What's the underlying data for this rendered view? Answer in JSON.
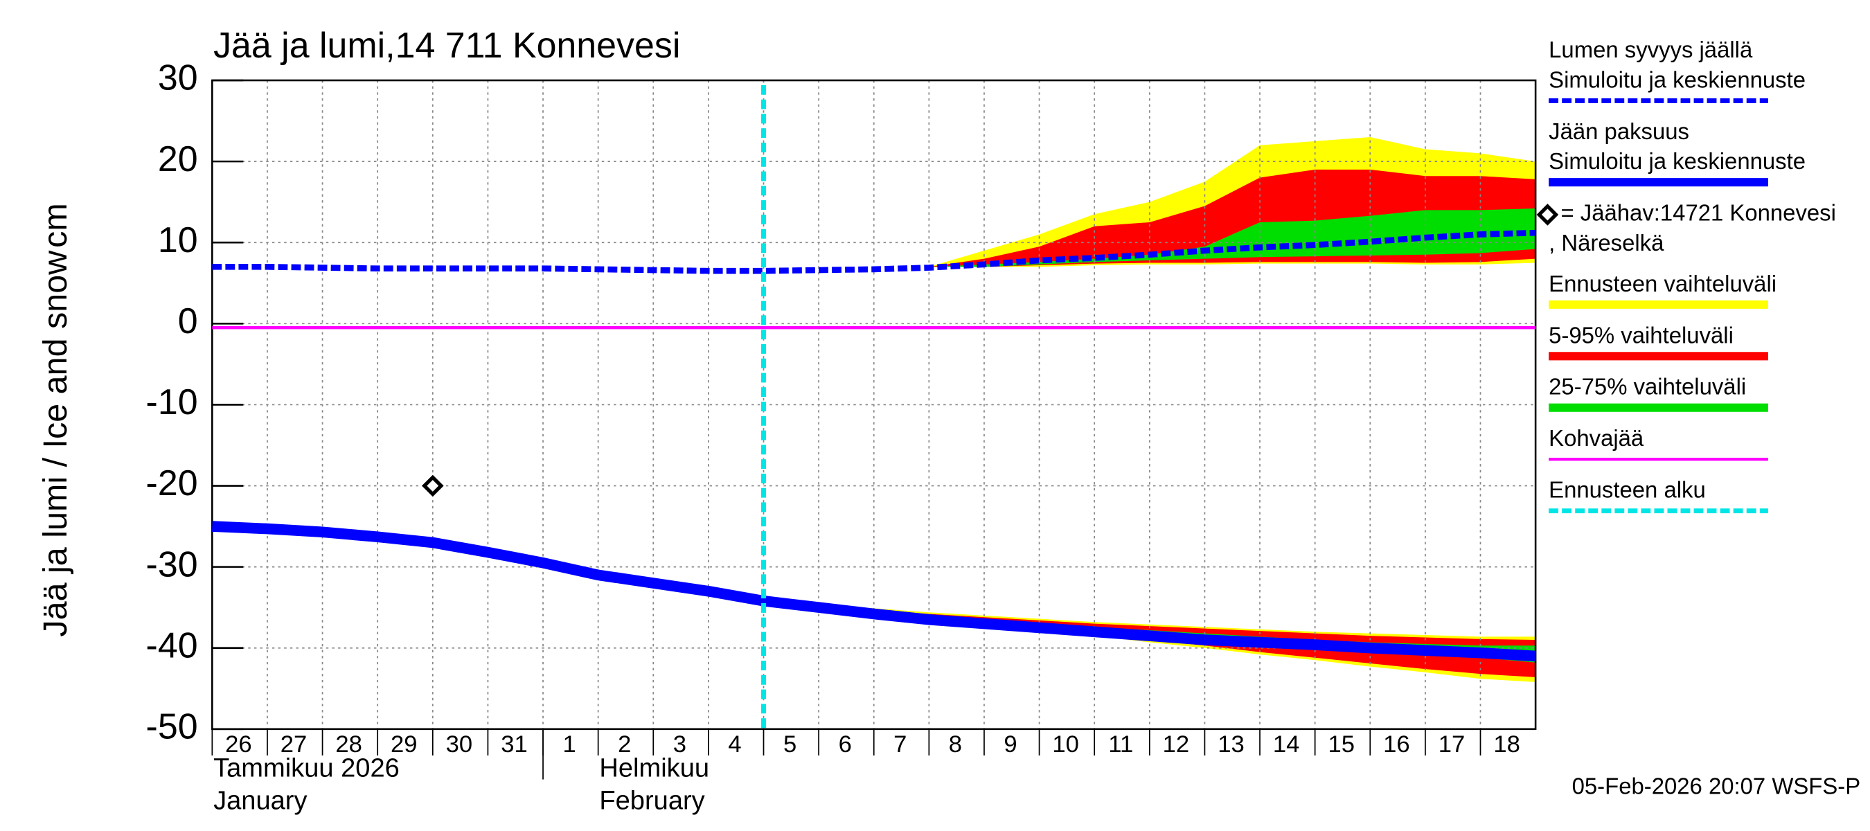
{
  "chart_data": {
    "type": "line",
    "title": "Jää ja lumi,14 711 Konnevesi",
    "y_label": "Jää ja lumi / Ice and snow",
    "y_unit": "cm",
    "month_labels": [
      "Tammikuu  2026",
      "January",
      "Helmikuu",
      "February"
    ],
    "footer": "05-Feb-2026 20:07 WSFS-P",
    "ylim": [
      -50,
      30
    ],
    "yticks": [
      30,
      20,
      10,
      0,
      -10,
      -20,
      -30,
      -40,
      -50
    ],
    "xlim": [
      "2026-01-26",
      "2026-02-19"
    ],
    "xticks": [
      {
        "value": "2026-01-26",
        "label": "26"
      },
      {
        "value": "2026-01-27",
        "label": "27"
      },
      {
        "value": "2026-01-28",
        "label": "28"
      },
      {
        "value": "2026-01-29",
        "label": "29"
      },
      {
        "value": "2026-01-30",
        "label": "30"
      },
      {
        "value": "2026-01-31",
        "label": "31"
      },
      {
        "value": "2026-02-01",
        "label": "1"
      },
      {
        "value": "2026-02-02",
        "label": "2"
      },
      {
        "value": "2026-02-03",
        "label": "3"
      },
      {
        "value": "2026-02-04",
        "label": "4"
      },
      {
        "value": "2026-02-05",
        "label": "5"
      },
      {
        "value": "2026-02-06",
        "label": "6"
      },
      {
        "value": "2026-02-07",
        "label": "7"
      },
      {
        "value": "2026-02-08",
        "label": "8"
      },
      {
        "value": "2026-02-09",
        "label": "9"
      },
      {
        "value": "2026-02-10",
        "label": "10"
      },
      {
        "value": "2026-02-11",
        "label": "11"
      },
      {
        "value": "2026-02-12",
        "label": "12"
      },
      {
        "value": "2026-02-13",
        "label": "13"
      },
      {
        "value": "2026-02-14",
        "label": "14"
      },
      {
        "value": "2026-02-15",
        "label": "15"
      },
      {
        "value": "2026-02-16",
        "label": "16"
      },
      {
        "value": "2026-02-17",
        "label": "17"
      },
      {
        "value": "2026-02-18",
        "label": "18"
      }
    ],
    "grid": true,
    "forecast_start": "2026-02-05",
    "bands": [
      {
        "color": "#ffff00",
        "x": [
          "2026-02-08",
          "2026-02-09",
          "2026-02-10",
          "2026-02-11",
          "2026-02-12",
          "2026-02-13",
          "2026-02-14",
          "2026-02-15",
          "2026-02-16",
          "2026-02-17",
          "2026-02-18",
          "2026-02-19"
        ],
        "low": [
          7,
          7,
          7,
          7.2,
          7.3,
          7.3,
          7.4,
          7.4,
          7.4,
          7.3,
          7.3,
          7.5
        ],
        "high": [
          7,
          9,
          11,
          13.5,
          15,
          17.5,
          22,
          22.5,
          23,
          21.5,
          21,
          20
        ]
      },
      {
        "color": "#ff0000",
        "x": [
          "2026-02-08",
          "2026-02-09",
          "2026-02-10",
          "2026-02-11",
          "2026-02-12",
          "2026-02-13",
          "2026-02-14",
          "2026-02-15",
          "2026-02-16",
          "2026-02-17",
          "2026-02-18",
          "2026-02-19"
        ],
        "low": [
          7,
          7,
          7.2,
          7.4,
          7.5,
          7.5,
          7.6,
          7.6,
          7.6,
          7.5,
          7.6,
          8
        ],
        "high": [
          7,
          8,
          9.5,
          12,
          12.5,
          14.5,
          18,
          19,
          19,
          18.2,
          18.2,
          17.8
        ]
      },
      {
        "color": "#00dd00",
        "x": [
          "2026-02-08",
          "2026-02-09",
          "2026-02-10",
          "2026-02-11",
          "2026-02-12",
          "2026-02-13",
          "2026-02-14",
          "2026-02-15",
          "2026-02-16",
          "2026-02-17",
          "2026-02-18",
          "2026-02-19"
        ],
        "low": [
          7,
          7,
          7.3,
          7.6,
          7.8,
          8,
          8.2,
          8.3,
          8.4,
          8.5,
          8.7,
          9.2
        ],
        "high": [
          7,
          7.3,
          7.6,
          8,
          8.5,
          9.5,
          12.5,
          12.7,
          13.3,
          14,
          14,
          14.2
        ]
      },
      {
        "color": "#ffff00",
        "x": [
          "2026-02-05",
          "2026-02-06",
          "2026-02-07",
          "2026-02-08",
          "2026-02-09",
          "2026-02-10",
          "2026-02-11",
          "2026-02-12",
          "2026-02-13",
          "2026-02-14",
          "2026-02-15",
          "2026-02-16",
          "2026-02-17",
          "2026-02-18",
          "2026-02-19"
        ],
        "low": [
          -34.2,
          -35.2,
          -36,
          -36.7,
          -37.2,
          -37.8,
          -38.5,
          -39.3,
          -40,
          -40.8,
          -41.5,
          -42.3,
          -43,
          -43.8,
          -44.2
        ],
        "high": [
          -34.2,
          -34.6,
          -35.1,
          -35.6,
          -36,
          -36.4,
          -36.8,
          -37.1,
          -37.4,
          -37.7,
          -38,
          -38.2,
          -38.4,
          -38.6,
          -38.6
        ]
      },
      {
        "color": "#ff0000",
        "x": [
          "2026-02-05",
          "2026-02-06",
          "2026-02-07",
          "2026-02-08",
          "2026-02-09",
          "2026-02-10",
          "2026-02-11",
          "2026-02-12",
          "2026-02-13",
          "2026-02-14",
          "2026-02-15",
          "2026-02-16",
          "2026-02-17",
          "2026-02-18",
          "2026-02-19"
        ],
        "low": [
          -34.2,
          -35.1,
          -35.9,
          -36.5,
          -37,
          -37.6,
          -38.3,
          -39,
          -39.7,
          -40.5,
          -41.2,
          -41.9,
          -42.6,
          -43.2,
          -43.6
        ],
        "high": [
          -34.2,
          -34.8,
          -35.3,
          -35.8,
          -36.2,
          -36.6,
          -37,
          -37.3,
          -37.6,
          -37.9,
          -38.2,
          -38.5,
          -38.7,
          -38.9,
          -39
        ]
      },
      {
        "color": "#00dd00",
        "x": [
          "2026-02-05",
          "2026-02-06",
          "2026-02-07",
          "2026-02-08",
          "2026-02-09",
          "2026-02-10",
          "2026-02-11",
          "2026-02-12",
          "2026-02-13",
          "2026-02-14",
          "2026-02-15",
          "2026-02-16",
          "2026-02-17",
          "2026-02-18",
          "2026-02-19"
        ],
        "low": [
          -34.2,
          -35.1,
          -35.8,
          -36.4,
          -36.9,
          -37.4,
          -37.9,
          -38.4,
          -38.9,
          -39.4,
          -39.9,
          -40.3,
          -40.7,
          -41.2,
          -41.8
        ],
        "high": [
          -34.2,
          -35,
          -35.6,
          -36.2,
          -36.6,
          -37,
          -37.4,
          -37.8,
          -38.2,
          -38.6,
          -39,
          -39.3,
          -39.5,
          -39.7,
          -39.7
        ]
      }
    ],
    "series": [
      {
        "name": [
          "Kohvajää"
        ],
        "color": "#ff00ff",
        "style": "thin",
        "x": [
          "2026-01-26",
          "2026-02-19"
        ],
        "values": [
          -0.5,
          -0.5
        ]
      },
      {
        "name": [
          "Lumen syvyys jäällä",
          "Simuloitu ja keskiennuste"
        ],
        "color": "#0000ff",
        "style": "dashed",
        "x": [
          "2026-01-26",
          "2026-01-27",
          "2026-01-28",
          "2026-01-29",
          "2026-01-30",
          "2026-01-31",
          "2026-02-01",
          "2026-02-02",
          "2026-02-03",
          "2026-02-04",
          "2026-02-05",
          "2026-02-06",
          "2026-02-07",
          "2026-02-08",
          "2026-02-09",
          "2026-02-10",
          "2026-02-11",
          "2026-02-12",
          "2026-02-13",
          "2026-02-14",
          "2026-02-15",
          "2026-02-16",
          "2026-02-17",
          "2026-02-18",
          "2026-02-19"
        ],
        "values": [
          7,
          7,
          6.9,
          6.8,
          6.8,
          6.8,
          6.8,
          6.7,
          6.6,
          6.5,
          6.5,
          6.6,
          6.7,
          6.9,
          7.3,
          7.8,
          8.1,
          8.5,
          9,
          9.4,
          9.7,
          10.1,
          10.6,
          11,
          11.2
        ]
      },
      {
        "name": [
          "Jään paksuus",
          "Simuloitu ja keskiennuste"
        ],
        "color": "#0000ff",
        "style": "thick",
        "x": [
          "2026-01-26",
          "2026-01-27",
          "2026-01-28",
          "2026-01-29",
          "2026-01-30",
          "2026-01-31",
          "2026-02-01",
          "2026-02-02",
          "2026-02-03",
          "2026-02-04",
          "2026-02-05",
          "2026-02-06",
          "2026-02-07",
          "2026-02-08",
          "2026-02-09",
          "2026-02-10",
          "2026-02-11",
          "2026-02-12",
          "2026-02-13",
          "2026-02-14",
          "2026-02-15",
          "2026-02-16",
          "2026-02-17",
          "2026-02-18",
          "2026-02-19"
        ],
        "values": [
          -25,
          -25.3,
          -25.7,
          -26.3,
          -27,
          -28.2,
          -29.5,
          -31,
          -32,
          -33,
          -34.2,
          -35,
          -35.8,
          -36.5,
          -37,
          -37.5,
          -38,
          -38.5,
          -39,
          -39.3,
          -39.6,
          -40,
          -40.3,
          -40.6,
          -41
        ]
      },
      {
        "name": [
          "= Jäähav:14721 Konnevesi",
          ", Näreselkä"
        ],
        "color": "#000000",
        "style": "marker",
        "x": [
          "2026-01-30"
        ],
        "values": [
          -20
        ]
      }
    ],
    "legend": [
      {
        "lines": [
          "Lumen syvyys jäällä",
          "Simuloitu ja keskiennuste"
        ],
        "color": "#0000ff",
        "style": "dashed"
      },
      {
        "lines": [
          "Jään paksuus",
          "Simuloitu ja keskiennuste"
        ],
        "color": "#0000ff",
        "style": "thick"
      },
      {
        "lines": [
          "= Jäähav:14721 Konnevesi",
          ", Näreselkä"
        ],
        "color": "#000000",
        "style": "marker"
      },
      {
        "lines": [
          "Ennusteen vaihteluväli"
        ],
        "color": "#ffff00",
        "style": "thick"
      },
      {
        "lines": [
          "5-95% vaihteluväli"
        ],
        "color": "#ff0000",
        "style": "thick"
      },
      {
        "lines": [
          "25-75% vaihteluväli"
        ],
        "color": "#00dd00",
        "style": "thick"
      },
      {
        "lines": [
          "Kohvajää"
        ],
        "color": "#ff00ff",
        "style": "thin"
      },
      {
        "lines": [
          "Ennusteen alku"
        ],
        "color": "#00e5e5",
        "style": "dashed"
      }
    ],
    "forecast_color": "#00e5e5"
  }
}
